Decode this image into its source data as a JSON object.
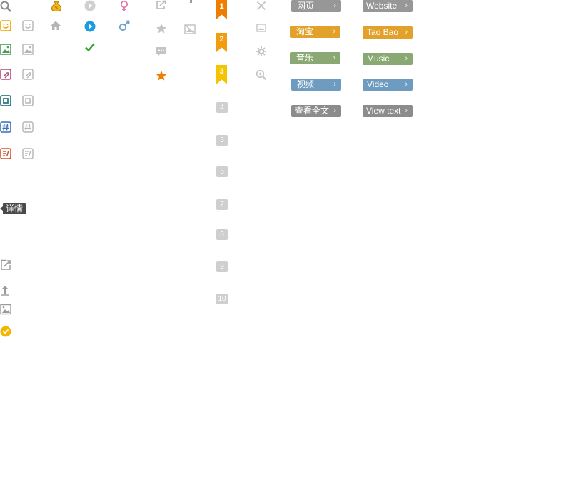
{
  "ribbons": [
    "1",
    "2",
    "3"
  ],
  "numbered_boxes": [
    "4",
    "5",
    "6",
    "7",
    "8",
    "9",
    "10"
  ],
  "tooltip": {
    "text": "详情"
  },
  "tags_chinese": [
    "网页",
    "淘宝",
    "音乐",
    "视频",
    "查看全文"
  ],
  "tags_english": [
    "Website",
    "Tao Bao",
    "Music",
    "Video",
    "View text"
  ],
  "arrow_glyph": "›",
  "colors": {
    "orange": "#ef7d00",
    "yellow": "#f5c400",
    "blue_play": "#1a9be3",
    "green_check": "#2aa52a",
    "female_pink": "#e07ba8",
    "male_blue": "#6a9ec9"
  }
}
